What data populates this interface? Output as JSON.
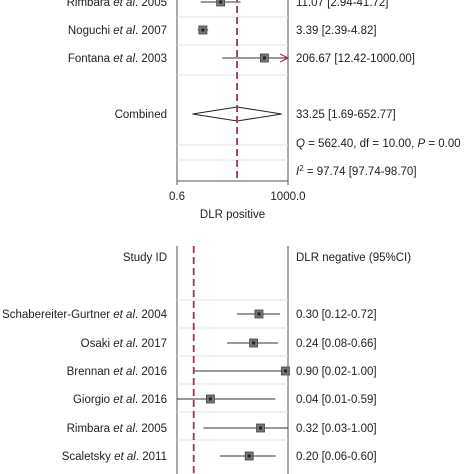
{
  "chart_data": [
    {
      "type": "forest",
      "xlabel": "DLR positive",
      "x_ticks": [
        "0.6",
        "1000.0"
      ],
      "x_scale": "log",
      "xlim": [
        0.6,
        1000
      ],
      "reference_value": 33.25,
      "studies": [
        {
          "name": "Rimbara et al. 2005",
          "estimate": 11.07,
          "ci_text": "11.07 [2.94-41.72]",
          "low": 2.94,
          "high": 41.72
        },
        {
          "name": "Noguchi et al. 2007",
          "estimate": 3.39,
          "ci_text": "3.39 [2.39-4.82]",
          "low": 2.39,
          "high": 4.82
        },
        {
          "name": "Fontana et al. 2003",
          "estimate": 206.67,
          "ci_text": "206.67 [12.42-1000.00]",
          "low": 12.42,
          "high": 1000,
          "arrow": true
        }
      ],
      "combined": {
        "label": "Combined",
        "estimate": 33.25,
        "low": 1.69,
        "high": 652.77,
        "ci_text": "33.25 [1.69-652.77]"
      },
      "q_stat": {
        "q": "562.40",
        "df": "10.00",
        "p": "0.00"
      },
      "i2_text": "= 97.74 [97.74-98.70]"
    },
    {
      "type": "forest",
      "study_header": "Study ID",
      "column_header": "DLR negative (95%CI)",
      "x_scale": "log",
      "xlim": [
        0.01,
        1.0
      ],
      "reference_value": 0.02,
      "studies": [
        {
          "name": "Schabereiter-Gurtner et al. 2004",
          "estimate": 0.3,
          "low": 0.12,
          "high": 0.72,
          "ci_text": "0.30 [0.12-0.72]"
        },
        {
          "name": "Osaki et al. 2017",
          "estimate": 0.24,
          "low": 0.08,
          "high": 0.66,
          "ci_text": "0.24 [0.08-0.66]"
        },
        {
          "name": "Brennan et al. 2016",
          "estimate": 0.9,
          "low": 0.02,
          "high": 1.0,
          "ci_text": "0.90 [0.02-1.00]"
        },
        {
          "name": "Giorgio et al. 2016",
          "estimate": 0.04,
          "low": 0.01,
          "high": 0.59,
          "ci_text": "0.04 [0.01-0.59]"
        },
        {
          "name": "Rimbara et al. 2005",
          "estimate": 0.32,
          "low": 0.03,
          "high": 1.0,
          "ci_text": "0.32 [0.03-1.00]"
        },
        {
          "name": "Scaletsky et al. 2011",
          "estimate": 0.2,
          "low": 0.06,
          "high": 0.6,
          "ci_text": "0.20 [0.06-0.60]"
        }
      ]
    }
  ],
  "colors": {
    "dashed": "#a8324a",
    "line": "#555555",
    "box": "#777777",
    "ci": "#333333"
  }
}
